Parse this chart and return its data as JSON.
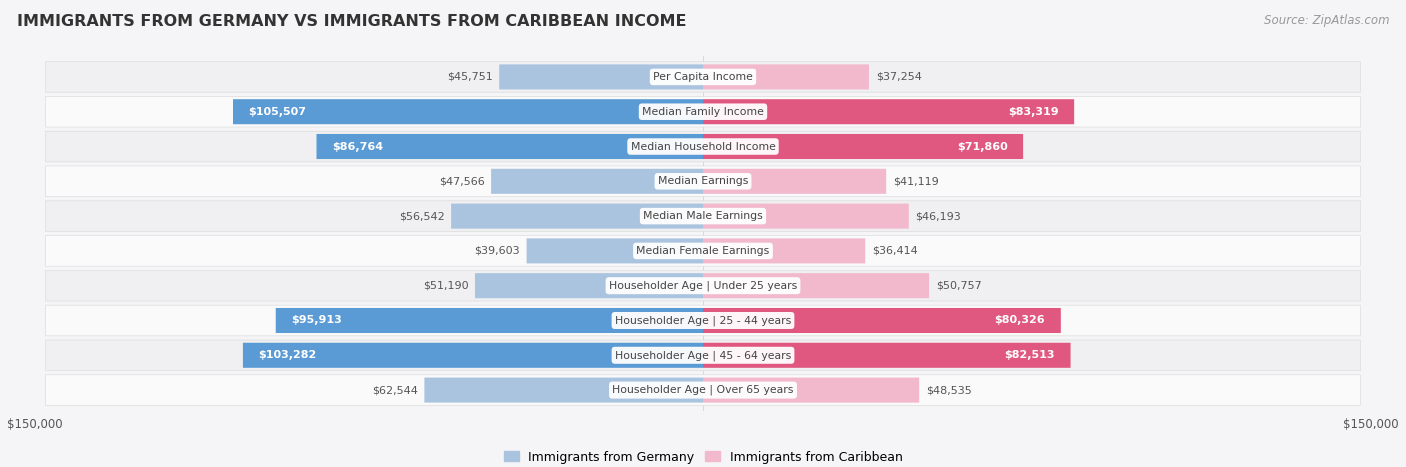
{
  "title": "IMMIGRANTS FROM GERMANY VS IMMIGRANTS FROM CARIBBEAN INCOME",
  "source": "Source: ZipAtlas.com",
  "categories": [
    "Per Capita Income",
    "Median Family Income",
    "Median Household Income",
    "Median Earnings",
    "Median Male Earnings",
    "Median Female Earnings",
    "Householder Age | Under 25 years",
    "Householder Age | 25 - 44 years",
    "Householder Age | 45 - 64 years",
    "Householder Age | Over 65 years"
  ],
  "germany_values": [
    45751,
    105507,
    86764,
    47566,
    56542,
    39603,
    51190,
    95913,
    103282,
    62544
  ],
  "caribbean_values": [
    37254,
    83319,
    71860,
    41119,
    46193,
    36414,
    50757,
    80326,
    82513,
    48535
  ],
  "germany_color_light": "#aac4e0",
  "germany_color_dark": "#5b9bd5",
  "caribbean_color_light": "#f2b8cc",
  "caribbean_color_dark": "#e05880",
  "max_value": 150000,
  "bar_height": 0.72,
  "row_bg_odd": "#f0f0f2",
  "row_bg_even": "#fafafa",
  "background_color": "#f5f5f7",
  "legend_germany": "Immigrants from Germany",
  "legend_caribbean": "Immigrants from Caribbean",
  "germany_dark_threshold": 80000,
  "caribbean_dark_threshold": 65000
}
